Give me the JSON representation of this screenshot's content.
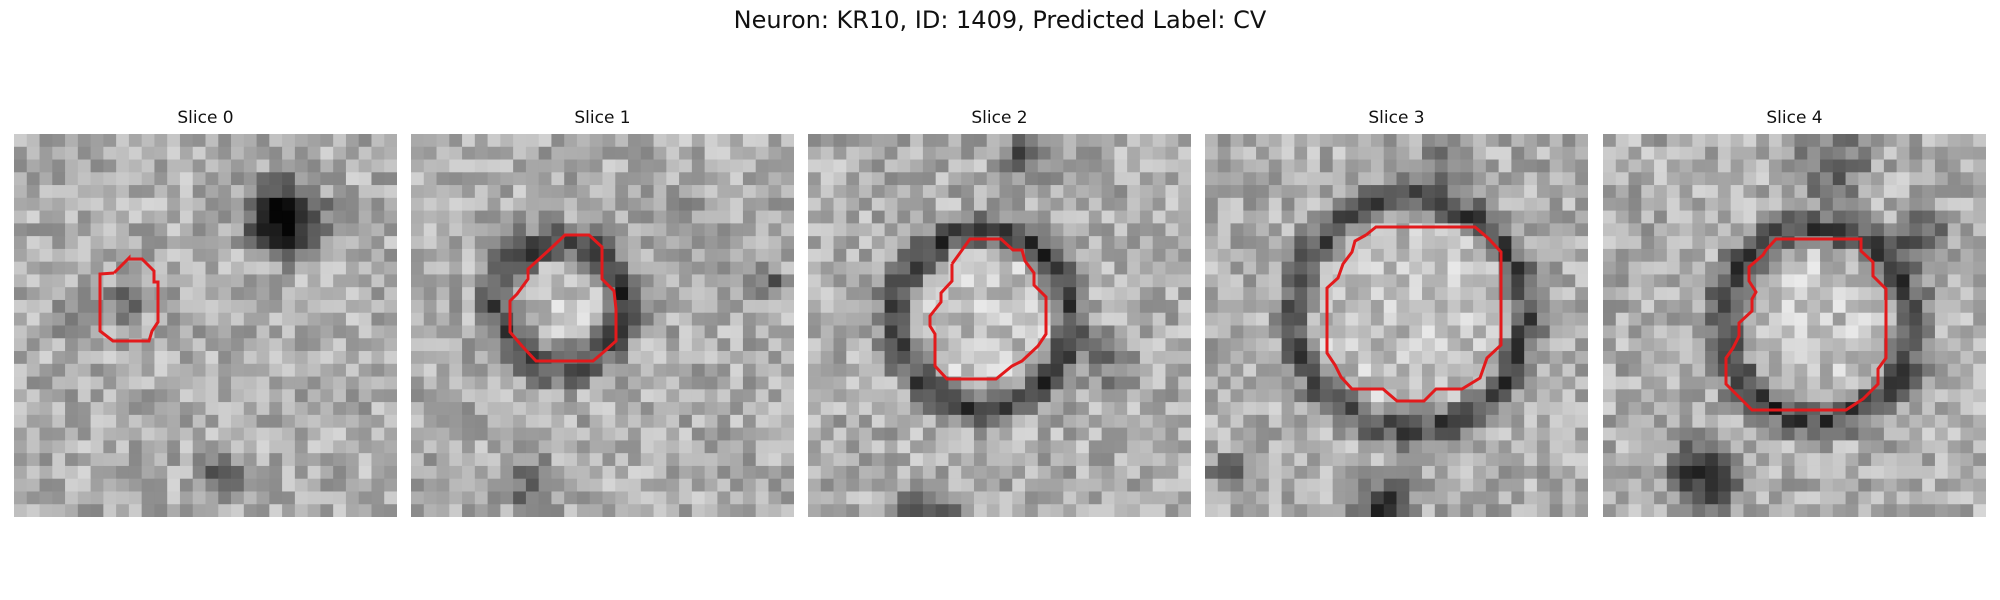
{
  "figure": {
    "title": "Neuron: KR10, ID: 1409, Predicted Label: CV"
  },
  "panels": [
    {
      "title": "Slice 0"
    },
    {
      "title": "Slice 1"
    },
    {
      "title": "Slice 2"
    },
    {
      "title": "Slice 3"
    },
    {
      "title": "Slice 4"
    }
  ],
  "colors": {
    "outline": "#e31a1c",
    "background": "#ffffff",
    "colormap": "gray"
  },
  "image": {
    "grid_cells": 30
  }
}
